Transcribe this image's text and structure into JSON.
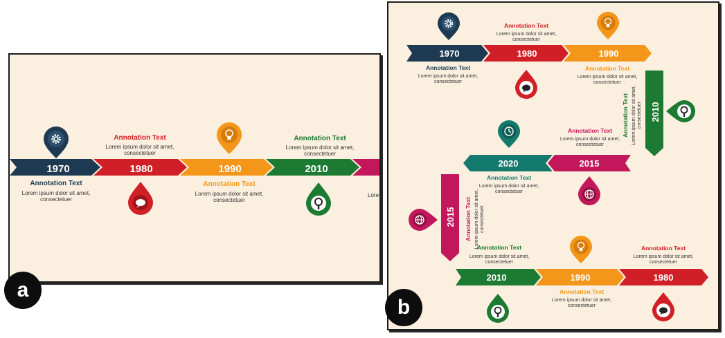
{
  "colors": {
    "navy": "#1e3a52",
    "red": "#d11f27",
    "orange": "#f39619",
    "green": "#1d7a32",
    "teal": "#157a6e",
    "magenta": "#c2185b",
    "background": "#fbf0e0"
  },
  "panel_a": {
    "label": "a",
    "years": [
      "1970",
      "1980",
      "1990",
      "2010"
    ],
    "annotation_title": "Annotation Text",
    "annotation_line1": "Lorem ipsum dolor sit amet,",
    "annotation_line2": "consectetuer",
    "annotation_clip": "Lore"
  },
  "panel_b": {
    "label": "b",
    "top_years": [
      "1970",
      "1980",
      "1990"
    ],
    "right_year": "2010",
    "middle_years": [
      "2020",
      "2015"
    ],
    "left_year": "2015",
    "bottom_years": [
      "2010",
      "1990",
      "1980"
    ],
    "annotation_title": "Annotation Text",
    "annotation_line1": "Lorem ipsum dolor sit amet,",
    "annotation_line2": "consectetuer"
  },
  "icons": [
    "gear-icon",
    "lightbulb-icon",
    "chat-icon",
    "search-icon",
    "clock-icon",
    "globe-icon"
  ]
}
